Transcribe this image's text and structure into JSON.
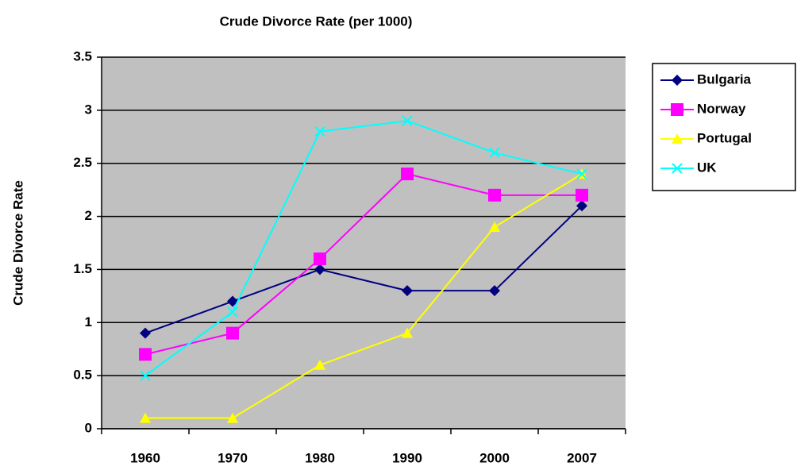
{
  "chart_data": {
    "type": "line",
    "title": "Crude Divorce Rate (per 1000)",
    "y_label": "Crude Divorce Rate",
    "categories": [
      "1960",
      "1970",
      "1980",
      "1990",
      "2000",
      "2007"
    ],
    "series": [
      {
        "name": "Bulgaria",
        "color": "#000080",
        "marker": "diamond",
        "values": [
          0.9,
          1.2,
          1.5,
          1.3,
          1.3,
          2.1
        ]
      },
      {
        "name": "Norway",
        "color": "#ff00ff",
        "marker": "square",
        "values": [
          0.7,
          0.9,
          1.6,
          2.4,
          2.2,
          2.2
        ]
      },
      {
        "name": "Portugal",
        "color": "#ffff00",
        "marker": "triangle",
        "values": [
          0.1,
          0.1,
          0.6,
          0.9,
          1.9,
          2.4
        ]
      },
      {
        "name": "UK",
        "color": "#00ffff",
        "marker": "x",
        "values": [
          0.5,
          1.1,
          2.8,
          2.9,
          2.6,
          2.4
        ]
      }
    ],
    "ylim": [
      0,
      3.5
    ],
    "yticks": [
      0,
      0.5,
      1,
      1.5,
      2,
      2.5,
      3,
      3.5
    ],
    "grid": true,
    "legend": "right",
    "plot_background": "#c0c0c0"
  }
}
